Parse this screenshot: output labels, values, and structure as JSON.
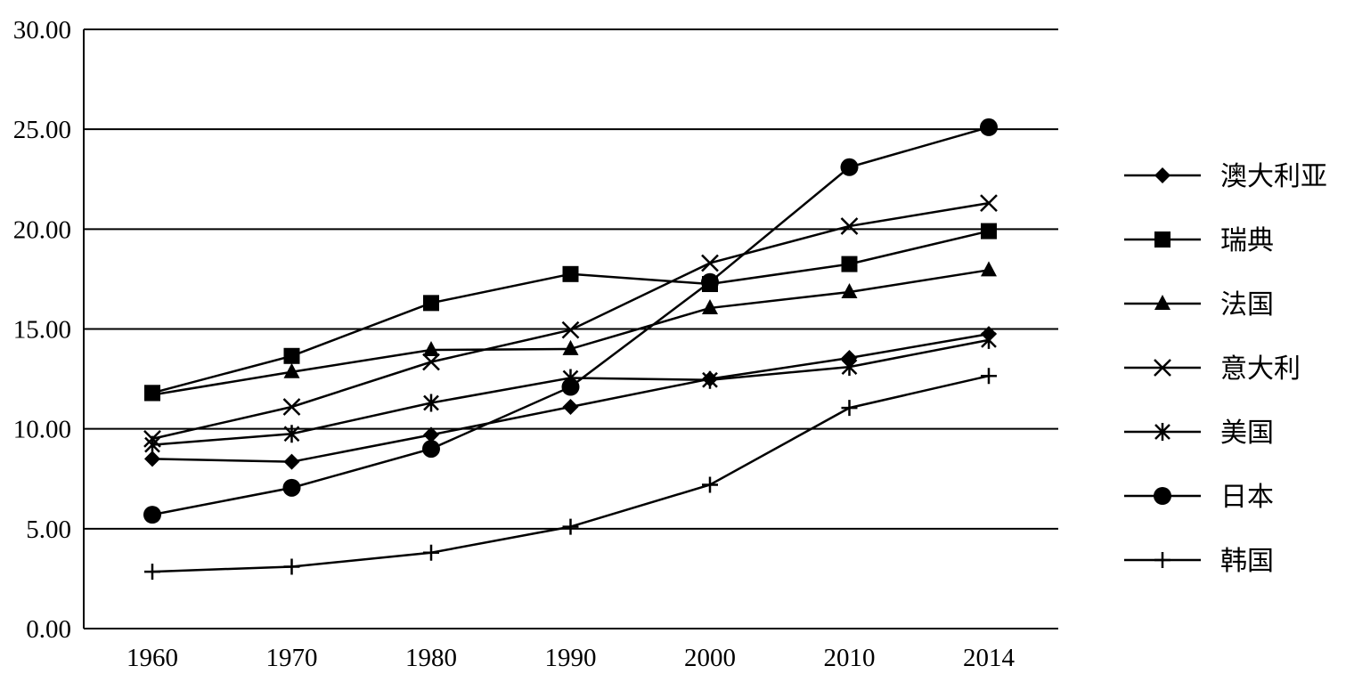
{
  "chart_data": {
    "type": "line",
    "title": "",
    "xlabel": "",
    "ylabel": "",
    "categories": [
      "1960",
      "1970",
      "1980",
      "1990",
      "2000",
      "2010",
      "2014"
    ],
    "y_ticks": [
      "0.00",
      "5.00",
      "10.00",
      "15.00",
      "20.00",
      "25.00",
      "30.00"
    ],
    "ylim": [
      0,
      30
    ],
    "grid": "horizontal",
    "legend_position": "right",
    "series": [
      {
        "name": "澳大利亚",
        "marker": "diamond",
        "values": [
          8.5,
          8.35,
          9.7,
          11.1,
          12.5,
          13.55,
          14.75
        ]
      },
      {
        "name": "瑞典",
        "marker": "square",
        "values": [
          11.8,
          13.65,
          16.3,
          17.75,
          17.25,
          18.25,
          19.9
        ]
      },
      {
        "name": "法国",
        "marker": "triangle",
        "values": [
          11.7,
          12.85,
          13.95,
          14.0,
          16.05,
          16.85,
          17.95
        ]
      },
      {
        "name": "意大利",
        "marker": "x",
        "values": [
          9.5,
          11.1,
          13.35,
          14.95,
          18.3,
          20.15,
          21.3
        ]
      },
      {
        "name": "美国",
        "marker": "asterisk",
        "values": [
          9.2,
          9.75,
          11.3,
          12.55,
          12.45,
          13.1,
          14.45
        ]
      },
      {
        "name": "日本",
        "marker": "circle",
        "values": [
          5.7,
          7.05,
          9.0,
          12.1,
          17.35,
          23.1,
          25.1
        ]
      },
      {
        "name": "韩国",
        "marker": "plus",
        "values": [
          2.85,
          3.1,
          3.8,
          5.1,
          7.2,
          11.05,
          12.65
        ]
      }
    ]
  }
}
